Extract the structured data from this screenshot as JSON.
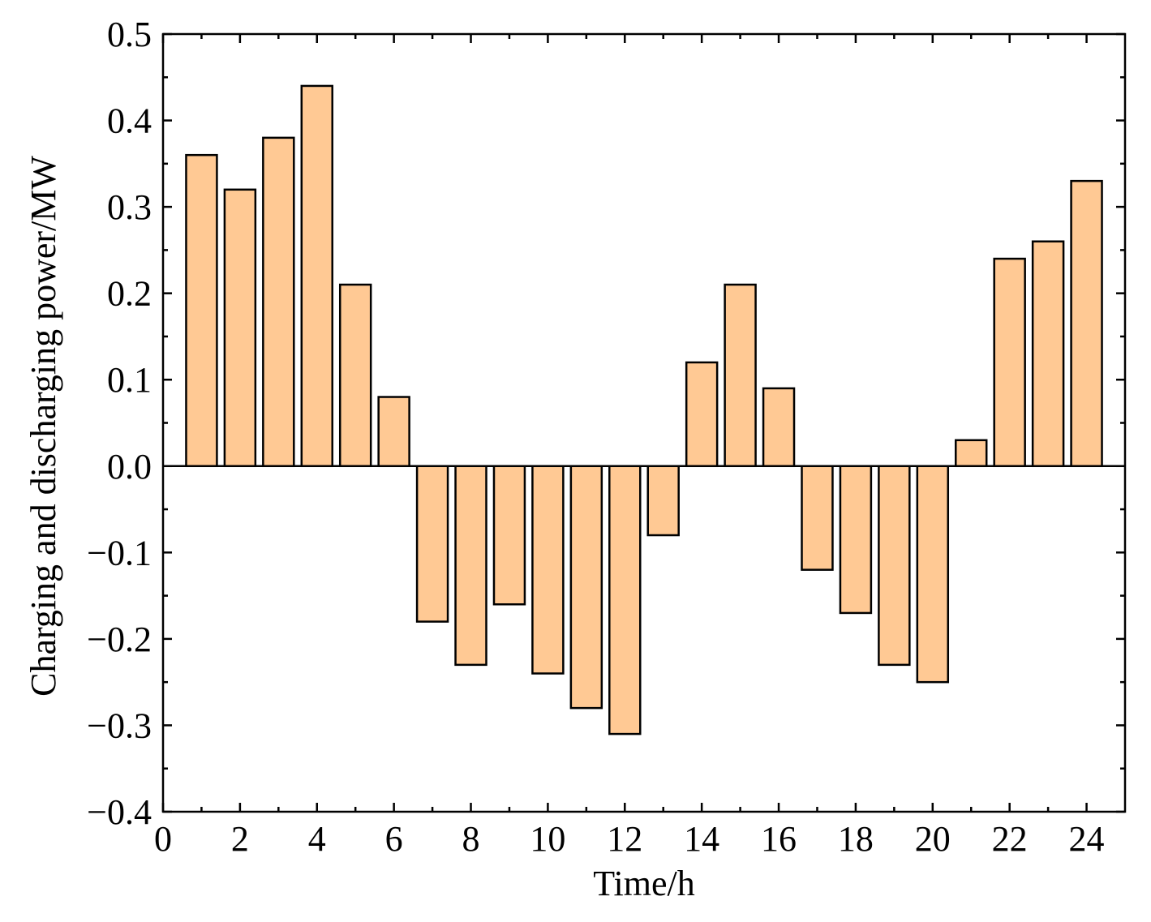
{
  "chart_data": {
    "type": "bar",
    "title": "",
    "xlabel": "Time/h",
    "ylabel": "Charging and discharging power/MW",
    "xlim": [
      0,
      25
    ],
    "ylim": [
      -0.4,
      0.5
    ],
    "x_ticks": [
      0,
      2,
      4,
      6,
      8,
      10,
      12,
      14,
      16,
      18,
      20,
      22,
      24
    ],
    "x_tick_labels": [
      "0",
      "2",
      "4",
      "6",
      "8",
      "10",
      "12",
      "14",
      "16",
      "18",
      "20",
      "22",
      "24"
    ],
    "y_ticks": [
      -0.4,
      -0.3,
      -0.2,
      -0.1,
      0.0,
      0.1,
      0.2,
      0.3,
      0.4,
      0.5
    ],
    "y_tick_labels": [
      "−0.4",
      "−0.3",
      "−0.2",
      "−0.1",
      "0.0",
      "0.1",
      "0.2",
      "0.3",
      "0.4",
      "0.5"
    ],
    "grid": false,
    "legend": "none",
    "bar_color": "#FFC994",
    "x": [
      1,
      2,
      3,
      4,
      5,
      6,
      7,
      8,
      9,
      10,
      11,
      12,
      13,
      14,
      15,
      16,
      17,
      18,
      19,
      20,
      21,
      22,
      23,
      24
    ],
    "values": [
      0.36,
      0.32,
      0.38,
      0.44,
      0.21,
      0.08,
      -0.18,
      -0.23,
      -0.16,
      -0.24,
      -0.28,
      -0.31,
      -0.08,
      0.12,
      0.21,
      0.09,
      -0.12,
      -0.17,
      -0.23,
      -0.25,
      0.03,
      0.24,
      0.26,
      0.33
    ]
  }
}
